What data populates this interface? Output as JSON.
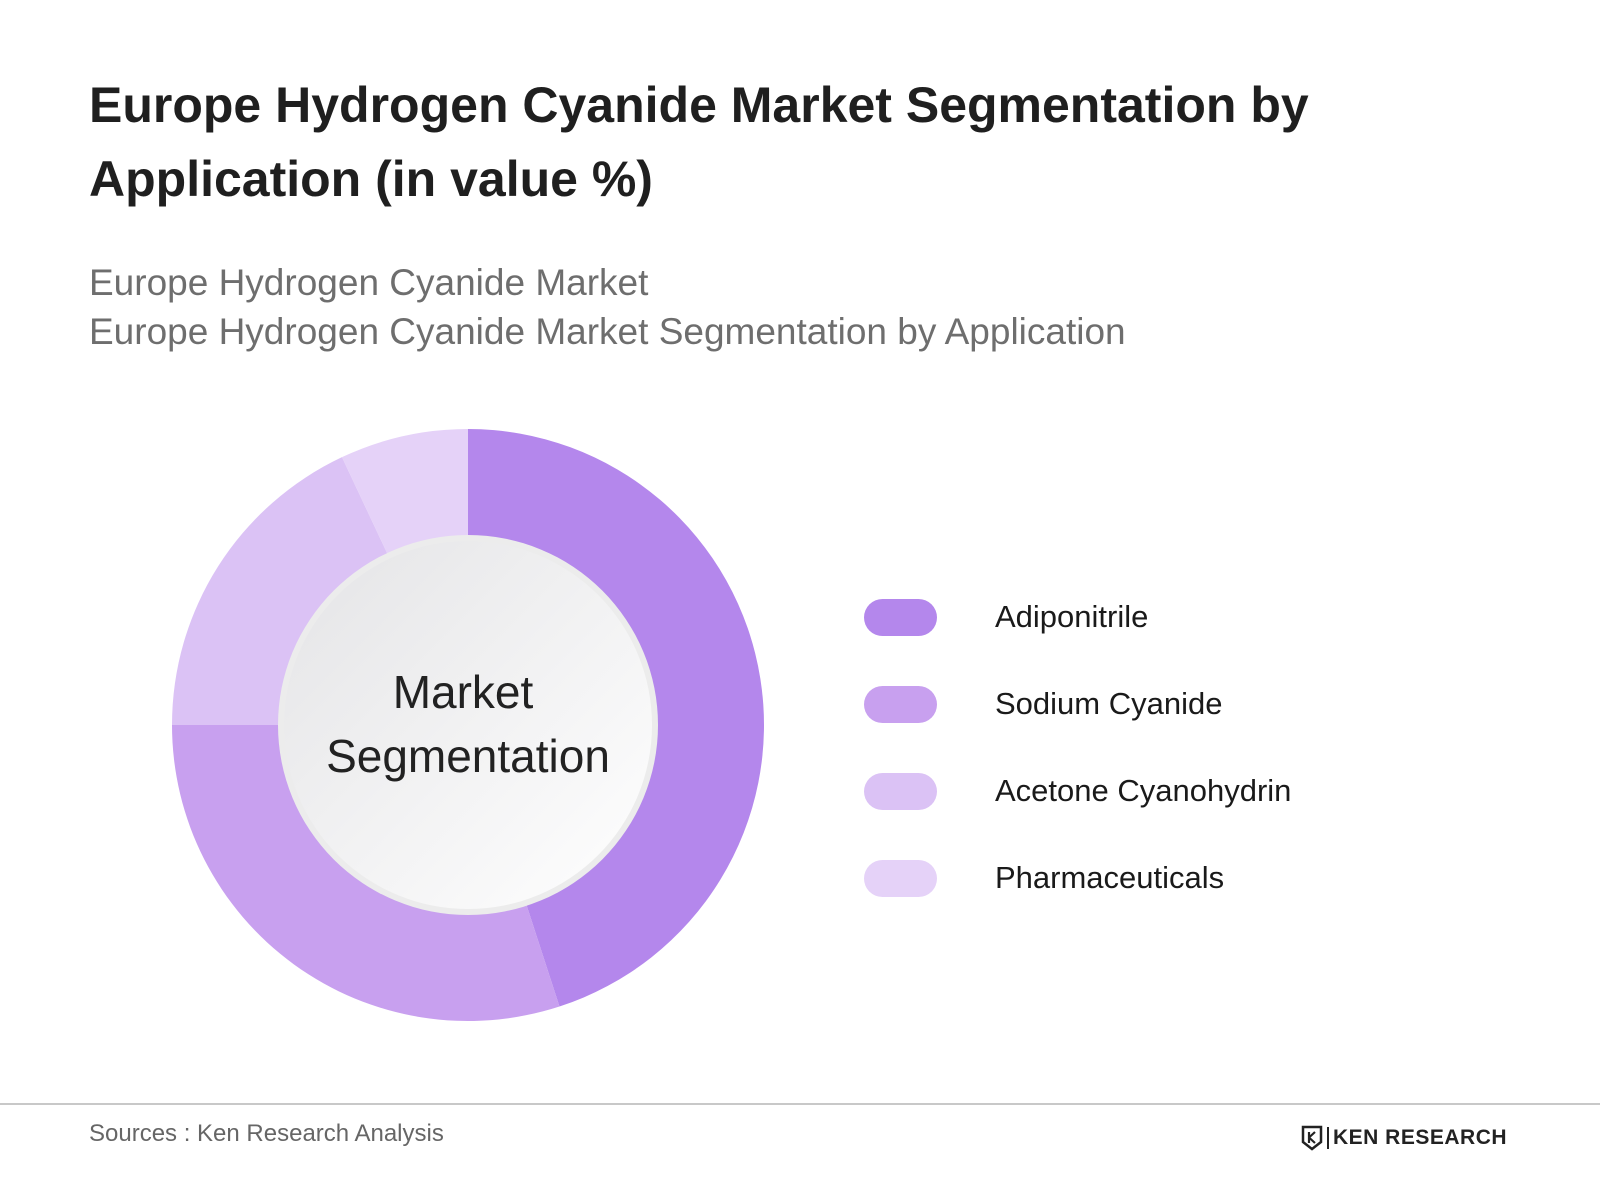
{
  "header": {
    "title": "Europe Hydrogen Cyanide Market Segmentation by Application (in value %)",
    "subtitle_line1": "Europe Hydrogen Cyanide Market",
    "subtitle_line2": "Europe Hydrogen Cyanide Market Segmentation by Application"
  },
  "chart_data": {
    "type": "pie",
    "center_label_line1": "Market",
    "center_label_line2": "Segmentation",
    "categories": [
      "Adiponitrile",
      "Sodium Cyanide",
      "Acetone Cyanohydrin",
      "Pharmaceuticals"
    ],
    "values": [
      45,
      30,
      18,
      7
    ],
    "colors": [
      "#b487ec",
      "#c8a0ef",
      "#dbc2f5",
      "#e5d2f8"
    ],
    "legend_position": "right"
  },
  "footer": {
    "source": "Sources : Ken Research Analysis",
    "logo_text": "KEN RESEARCH"
  }
}
